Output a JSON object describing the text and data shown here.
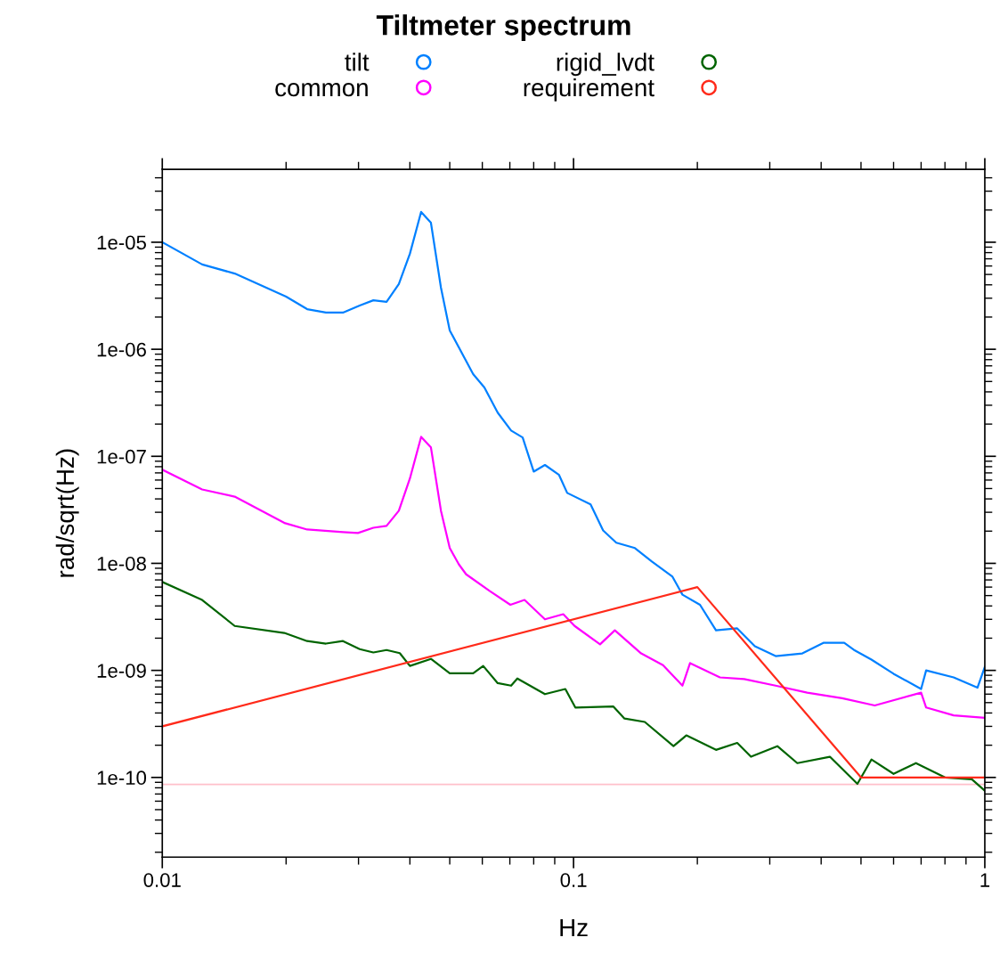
{
  "chart_data": {
    "type": "line",
    "title": "Tiltmeter spectrum",
    "xlabel": "Hz",
    "ylabel": "rad/sqrt(Hz)",
    "log": "xy",
    "grid": false,
    "legend": "top",
    "line_style": "solid",
    "xlim": [
      0.01,
      1
    ],
    "xticks": [
      0.01,
      0.1,
      1
    ],
    "ylim": [
      1.8e-11,
      4.8e-05
    ],
    "yticks": [
      {
        "value": 1e-10,
        "label": "1e-10"
      },
      {
        "value": 1e-09,
        "label": "1e-09"
      },
      {
        "value": 1e-08,
        "label": "1e-08"
      },
      {
        "value": 1e-07,
        "label": "1e-07"
      },
      {
        "value": 1e-06,
        "label": "1e-06"
      },
      {
        "value": 1e-05,
        "label": "1e-05"
      }
    ],
    "ref_lines": [
      {
        "axis": "y",
        "value": 8.6e-11,
        "color": "#ffc0cb"
      }
    ],
    "series": [
      {
        "name": "tilt",
        "color": "#0080ff",
        "x": [
          0.01,
          0.0125,
          0.015,
          0.02,
          0.0225,
          0.025,
          0.0275,
          0.0302,
          0.0326,
          0.0351,
          0.0376,
          0.04,
          0.0426,
          0.045,
          0.0476,
          0.05,
          0.057,
          0.0607,
          0.0654,
          0.0705,
          0.0752,
          0.08,
          0.0852,
          0.0922,
          0.0965,
          0.11,
          0.118,
          0.127,
          0.141,
          0.155,
          0.174,
          0.184,
          0.203,
          0.222,
          0.25,
          0.276,
          0.31,
          0.36,
          0.405,
          0.455,
          0.48,
          0.53,
          0.6,
          0.7,
          0.72,
          0.84,
          0.96,
          1.0
        ],
        "values": [
          1e-05,
          6.2e-06,
          5.1e-06,
          3.1e-06,
          2.37e-06,
          2.2e-06,
          2.2e-06,
          2.56e-06,
          2.87e-06,
          2.77e-06,
          4.06e-06,
          7.8e-06,
          1.92e-05,
          1.52e-05,
          3.76e-06,
          1.5e-06,
          5.85e-07,
          4.4e-07,
          2.56e-07,
          1.74e-07,
          1.5e-07,
          7.2e-08,
          8.3e-08,
          6.7e-08,
          4.55e-08,
          3.55e-08,
          2.03e-08,
          1.56e-08,
          1.39e-08,
          1.04e-08,
          7.5e-09,
          5.1e-09,
          4.1e-09,
          2.37e-09,
          2.47e-09,
          1.68e-09,
          1.36e-09,
          1.44e-09,
          1.81e-09,
          1.81e-09,
          1.56e-09,
          1.26e-09,
          9.3e-10,
          6.7e-10,
          1e-09,
          8.6e-10,
          6.9e-10,
          1.08e-09
        ]
      },
      {
        "name": "common",
        "color": "#ff00ff",
        "x": [
          0.01,
          0.0125,
          0.015,
          0.0199,
          0.0225,
          0.0275,
          0.0299,
          0.0326,
          0.0351,
          0.0376,
          0.04,
          0.0426,
          0.045,
          0.0476,
          0.05,
          0.0526,
          0.0548,
          0.0626,
          0.0702,
          0.076,
          0.0852,
          0.0944,
          0.1006,
          0.116,
          0.126,
          0.146,
          0.165,
          0.184,
          0.192,
          0.227,
          0.26,
          0.31,
          0.37,
          0.45,
          0.54,
          0.7,
          0.72,
          0.84,
          1.0
        ],
        "values": [
          7.5e-08,
          4.9e-08,
          4.2e-08,
          2.37e-08,
          2.07e-08,
          1.96e-08,
          1.92e-08,
          2.15e-08,
          2.24e-08,
          3.1e-08,
          6.2e-08,
          1.52e-07,
          1.21e-07,
          3.1e-08,
          1.39e-08,
          9.8e-09,
          7.9e-09,
          5.5e-09,
          4.1e-09,
          4.55e-09,
          3e-09,
          3.35e-09,
          2.6e-09,
          1.75e-09,
          2.37e-09,
          1.44e-09,
          1.12e-09,
          7.2e-10,
          1.17e-09,
          8.6e-10,
          8.3e-10,
          7.2e-10,
          6.2e-10,
          5.5e-10,
          4.7e-10,
          6.2e-10,
          4.5e-10,
          3.8e-10,
          3.6e-10
        ]
      },
      {
        "name": "rigid_lvdt",
        "color": "#006400",
        "x": [
          0.01,
          0.0125,
          0.015,
          0.0198,
          0.0225,
          0.025,
          0.0275,
          0.0302,
          0.0326,
          0.0351,
          0.0378,
          0.04,
          0.045,
          0.05,
          0.057,
          0.0603,
          0.0654,
          0.0705,
          0.073,
          0.0852,
          0.0955,
          0.101,
          0.125,
          0.133,
          0.149,
          0.175,
          0.188,
          0.222,
          0.25,
          0.27,
          0.313,
          0.35,
          0.42,
          0.49,
          0.53,
          0.6,
          0.68,
          0.8,
          0.93,
          1.0
        ],
        "values": [
          6.7e-09,
          4.55e-09,
          2.6e-09,
          2.24e-09,
          1.88e-09,
          1.78e-09,
          1.88e-09,
          1.58e-09,
          1.47e-09,
          1.55e-09,
          1.45e-09,
          1.1e-09,
          1.28e-09,
          9.4e-10,
          9.4e-10,
          1.1e-09,
          7.6e-10,
          7.2e-10,
          8.4e-10,
          6e-10,
          6.7e-10,
          4.5e-10,
          4.6e-10,
          3.55e-10,
          3.3e-10,
          1.96e-10,
          2.47e-10,
          1.81e-10,
          2.1e-10,
          1.56e-10,
          1.96e-10,
          1.36e-10,
          1.56e-10,
          8.7e-11,
          1.47e-10,
          1.08e-10,
          1.36e-10,
          1e-10,
          9.6e-11,
          7.5e-11
        ]
      },
      {
        "name": "requirement",
        "color": "#ff2a1a",
        "x": [
          0.01,
          0.2,
          0.5,
          1.0
        ],
        "values": [
          3e-10,
          6e-09,
          1e-10,
          1e-10
        ]
      }
    ]
  }
}
